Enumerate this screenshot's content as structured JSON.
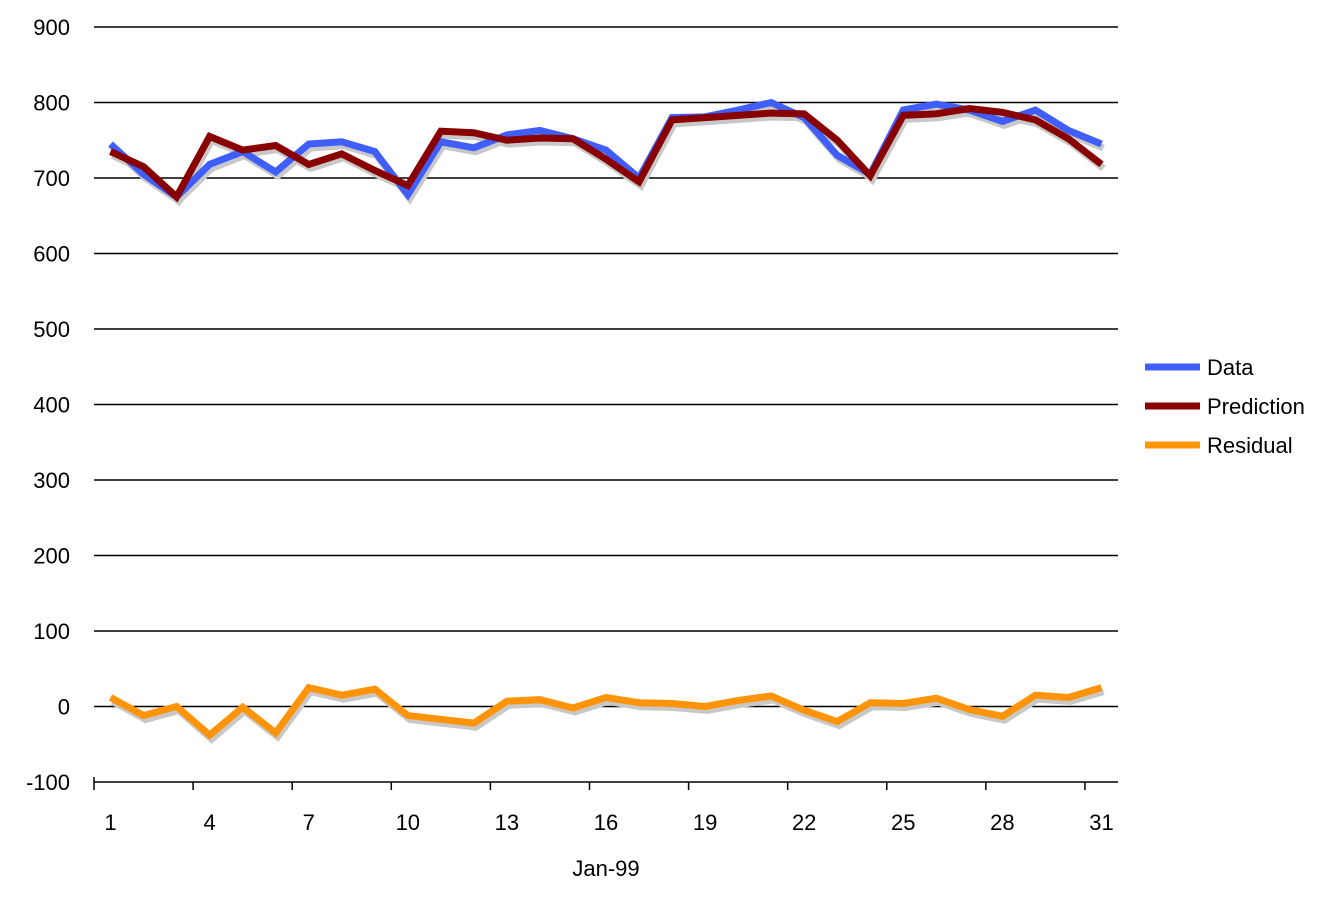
{
  "chart_data": {
    "type": "line",
    "title": "",
    "xlabel": "Jan-99",
    "ylabel": "",
    "ylim": [
      -100,
      900
    ],
    "yticks": [
      "-100",
      "0",
      "100",
      "200",
      "300",
      "400",
      "500",
      "600",
      "700",
      "800",
      "900"
    ],
    "x": [
      1,
      2,
      3,
      4,
      5,
      6,
      7,
      8,
      9,
      10,
      11,
      12,
      13,
      14,
      15,
      16,
      17,
      18,
      19,
      20,
      21,
      22,
      23,
      24,
      25,
      26,
      27,
      28,
      29,
      30,
      31
    ],
    "xtick_labels": [
      "1",
      "4",
      "7",
      "10",
      "13",
      "16",
      "19",
      "22",
      "25",
      "28",
      "31"
    ],
    "grid": true,
    "legend_position": "right",
    "series": [
      {
        "name": "Data",
        "color": "#3f5efb",
        "values": [
          745,
          705,
          675,
          718,
          735,
          708,
          745,
          748,
          735,
          678,
          748,
          740,
          757,
          763,
          752,
          737,
          700,
          780,
          781,
          790,
          800,
          780,
          730,
          705,
          790,
          798,
          790,
          775,
          790,
          763,
          745
        ]
      },
      {
        "name": "Prediction",
        "color": "#880000",
        "values": [
          735,
          715,
          675,
          755,
          737,
          743,
          718,
          732,
          710,
          690,
          762,
          760,
          750,
          753,
          752,
          725,
          695,
          777,
          780,
          783,
          786,
          785,
          750,
          703,
          783,
          785,
          792,
          787,
          777,
          752,
          718
        ]
      },
      {
        "name": "Residual",
        "color": "#ff9408",
        "values": [
          12,
          -12,
          0,
          -38,
          -1,
          -35,
          25,
          15,
          23,
          -12,
          -17,
          -22,
          7,
          9,
          -2,
          12,
          5,
          4,
          0,
          8,
          14,
          -5,
          -20,
          5,
          4,
          11,
          -4,
          -13,
          15,
          12,
          25
        ]
      }
    ]
  }
}
